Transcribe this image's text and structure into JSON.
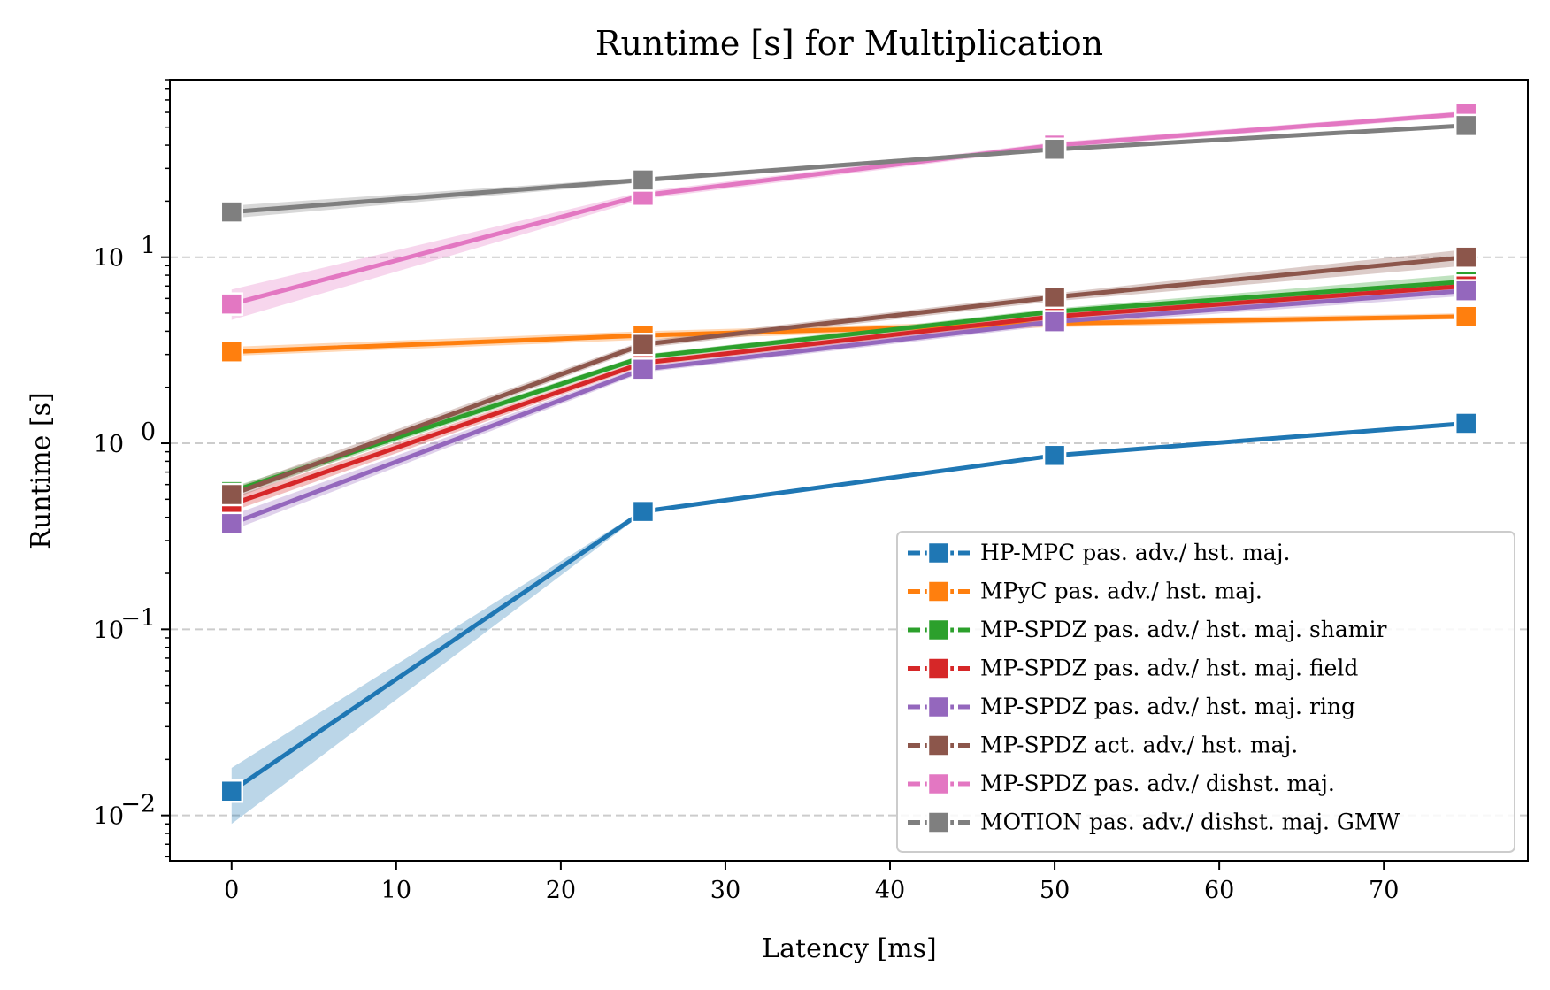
{
  "chart_data": {
    "type": "line",
    "title": "Runtime [s] for Multiplication",
    "xlabel": "Latency [ms]",
    "ylabel": "Runtime [s]",
    "x": [
      0,
      25,
      50,
      75
    ],
    "xlim": [
      -3.75,
      78.75
    ],
    "xticks": [
      "0",
      "10",
      "20",
      "30",
      "40",
      "50",
      "60",
      "70"
    ],
    "ylim": [
      0.0057,
      90
    ],
    "yscale": "log",
    "yticks": [
      {
        "value": 0.01,
        "base": "10",
        "exp": "−2"
      },
      {
        "value": 0.1,
        "base": "10",
        "exp": "−1"
      },
      {
        "value": 1,
        "base": "10",
        "exp": "0"
      },
      {
        "value": 10,
        "base": "10",
        "exp": "1"
      }
    ],
    "grid": "y-major dashed",
    "legend_position": "lower-right",
    "series": [
      {
        "name": "HP-MPC pas. adv./ hst. maj.",
        "color": "#1f77b4",
        "values": [
          0.0135,
          0.43,
          0.86,
          1.28
        ],
        "band_low": [
          0.009,
          0.42,
          0.85,
          1.26
        ],
        "band_high": [
          0.018,
          0.44,
          0.87,
          1.3
        ]
      },
      {
        "name": "MPyC pas. adv./ hst. maj.",
        "color": "#ff7f0e",
        "values": [
          3.1,
          3.8,
          4.4,
          4.8
        ],
        "band_low": [
          2.95,
          3.6,
          4.2,
          4.65
        ],
        "band_high": [
          3.3,
          4.0,
          4.6,
          5.0
        ]
      },
      {
        "name": "MP-SPDZ pas. adv./ hst. maj. shamir",
        "color": "#2ca02c",
        "values": [
          0.55,
          2.9,
          5.1,
          7.4
        ],
        "band_low": [
          0.52,
          2.8,
          4.95,
          7.0
        ],
        "band_high": [
          0.58,
          3.0,
          5.3,
          8.1
        ]
      },
      {
        "name": "MP-SPDZ pas. adv./ hst. maj. field",
        "color": "#d62728",
        "values": [
          0.47,
          2.7,
          4.8,
          7.0
        ],
        "band_low": [
          0.43,
          2.6,
          4.6,
          6.6
        ],
        "band_high": [
          0.51,
          2.8,
          5.0,
          7.4
        ]
      },
      {
        "name": "MP-SPDZ pas. adv./ hst. maj. ring",
        "color": "#9467bd",
        "values": [
          0.37,
          2.5,
          4.5,
          6.6
        ],
        "band_low": [
          0.34,
          2.4,
          4.3,
          6.2
        ],
        "band_high": [
          0.41,
          2.6,
          4.7,
          7.0
        ]
      },
      {
        "name": "MP-SPDZ act. adv./ hst. maj.",
        "color": "#8c564b",
        "values": [
          0.53,
          3.4,
          6.1,
          10.0
        ],
        "band_low": [
          0.5,
          3.25,
          5.8,
          9.0
        ],
        "band_high": [
          0.57,
          3.55,
          6.4,
          11.0
        ]
      },
      {
        "name": "MP-SPDZ pas. adv./ dishst. maj.",
        "color": "#e377c2",
        "values": [
          5.6,
          21.5,
          40.0,
          59.0
        ],
        "band_low": [
          4.6,
          20.5,
          38.5,
          57.0
        ],
        "band_high": [
          6.7,
          22.5,
          41.5,
          61.0
        ]
      },
      {
        "name": "MOTION pas. adv./ dishst. maj. GMW",
        "color": "#7f7f7f",
        "values": [
          17.5,
          26.0,
          38.0,
          51.0
        ],
        "band_low": [
          16.2,
          25.2,
          37.0,
          50.0
        ],
        "band_high": [
          18.9,
          26.8,
          39.0,
          52.0
        ]
      }
    ]
  }
}
